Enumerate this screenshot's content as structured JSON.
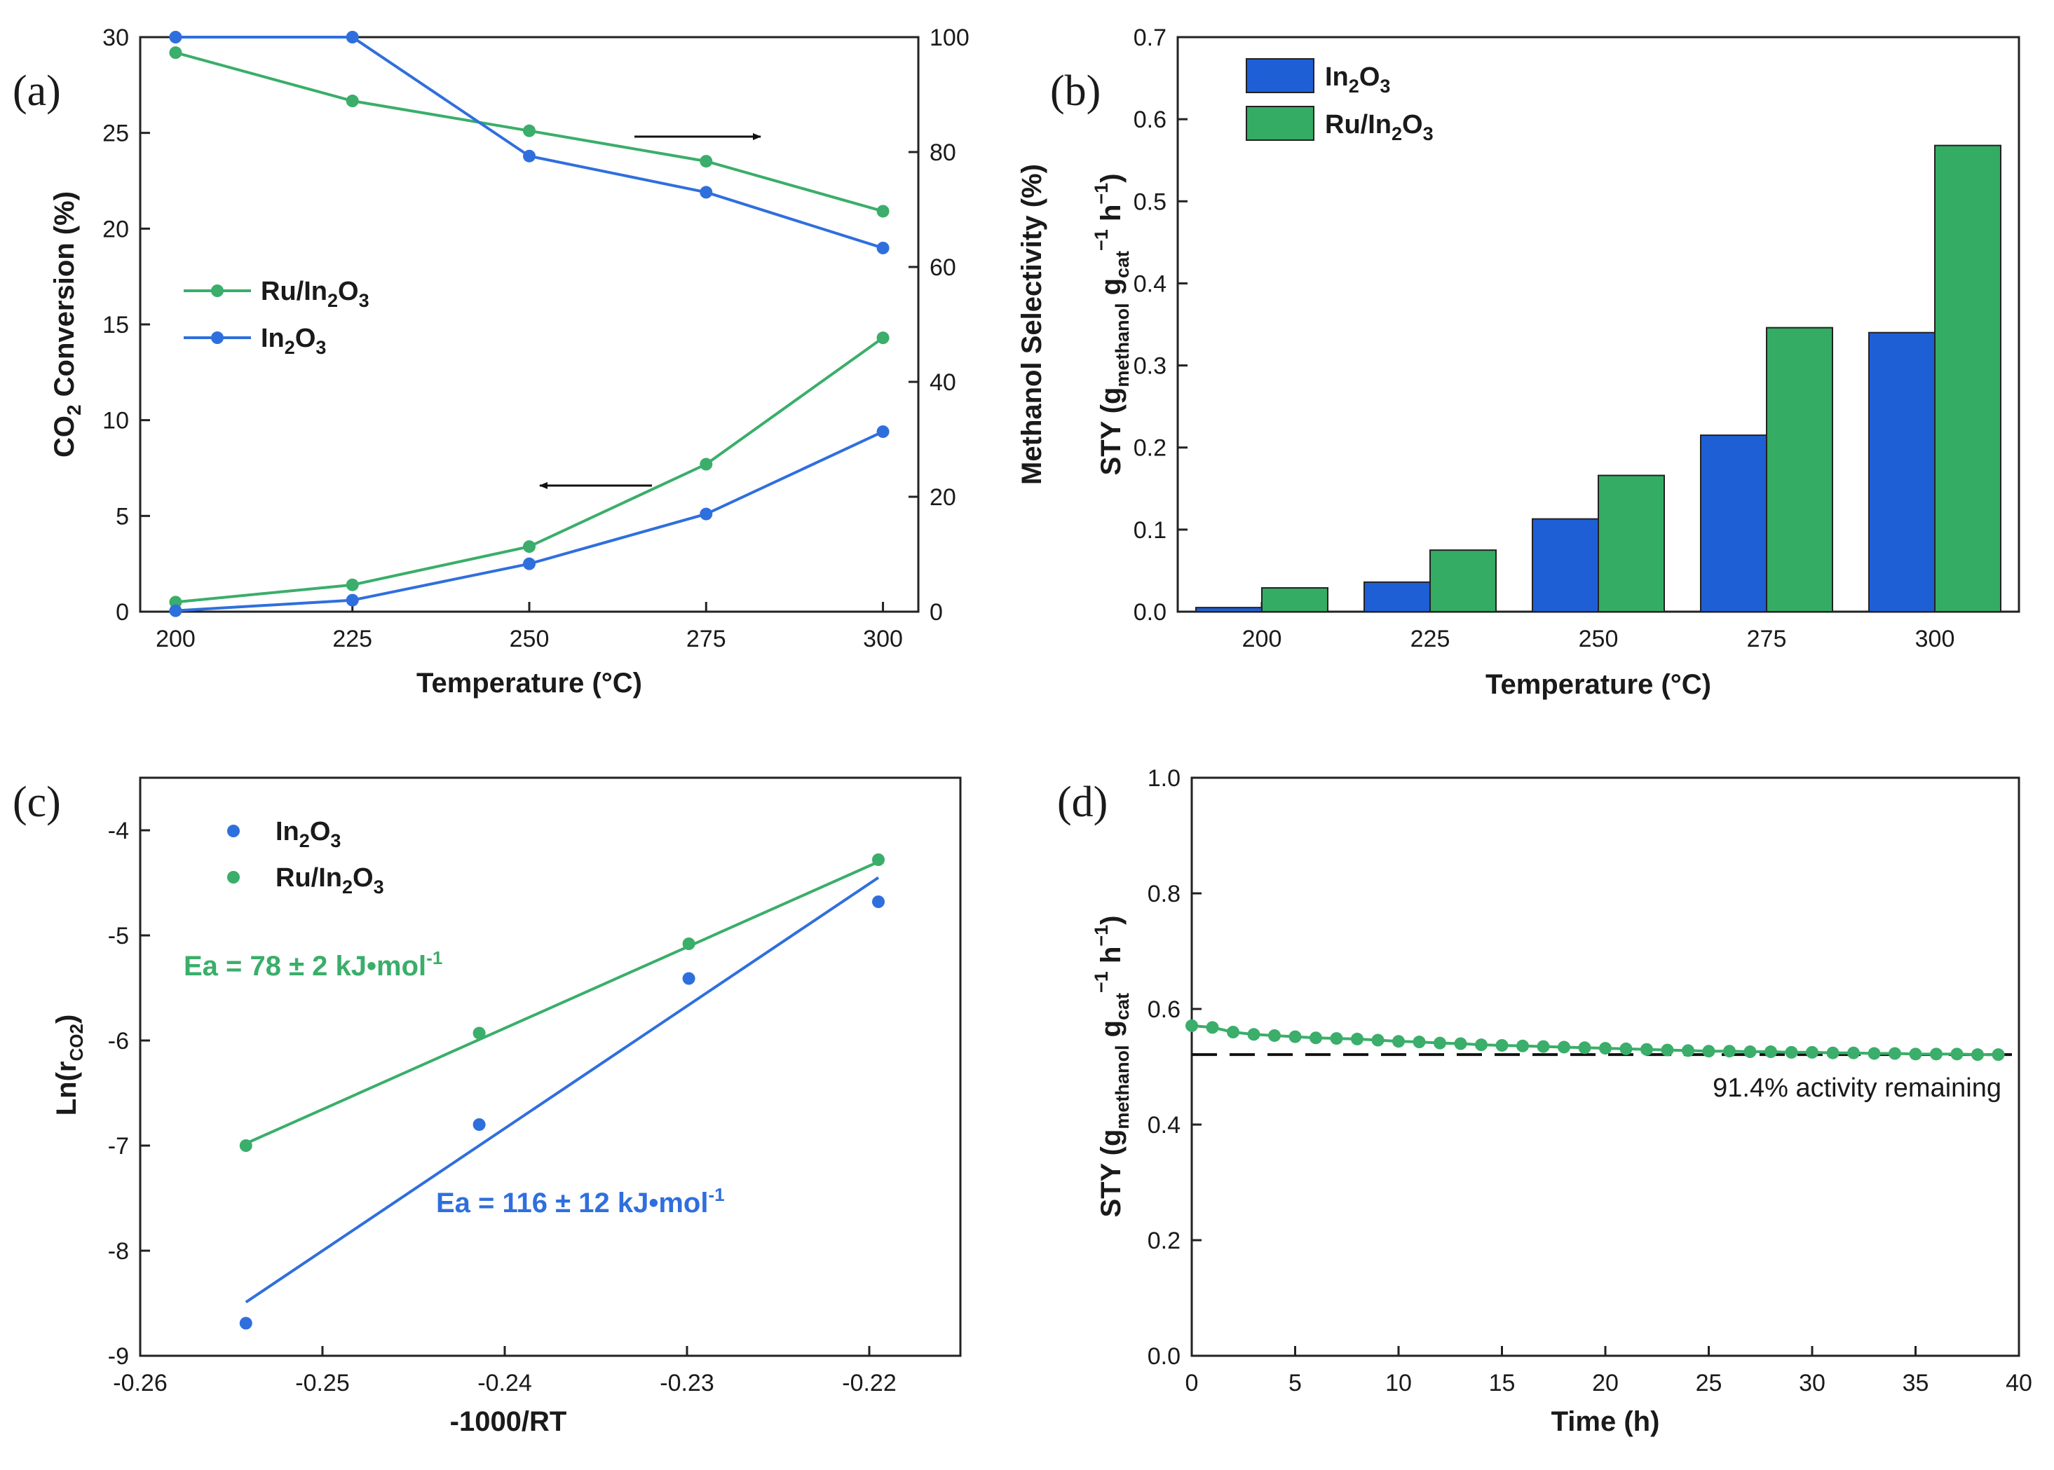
{
  "colors": {
    "in2o3": "#2f6fdd",
    "ru_in2o3": "#3aae6a",
    "in2o3_fill": "#1f5fd6",
    "ru_fill": "#34ac64",
    "axis": "#222222"
  },
  "chart_data": [
    {
      "id": "a",
      "panel_label": "(a)",
      "type": "line",
      "xlabel": "Temperature (°C)",
      "ylabel_left": "CO2 Conversion (%)",
      "ylabel_right": "Methanol Selectivity (%)",
      "xlim": [
        195,
        305
      ],
      "ylim_left": [
        0,
        30
      ],
      "ylim_right": [
        0,
        100
      ],
      "xticks": [
        200,
        225,
        250,
        275,
        300
      ],
      "yticks_left": [
        0,
        5,
        10,
        15,
        20,
        25,
        30
      ],
      "yticks_right": [
        0,
        20,
        40,
        60,
        80,
        100
      ],
      "x": [
        200,
        225,
        250,
        275,
        300
      ],
      "legend": [
        "Ru/In2O3",
        "In2O3"
      ],
      "series": [
        {
          "name": "Ru/In2O3 conversion",
          "axis": "left",
          "color": "ru_in2o3",
          "values": [
            0.5,
            1.4,
            3.4,
            7.7,
            14.3
          ]
        },
        {
          "name": "In2O3 conversion",
          "axis": "left",
          "color": "in2o3",
          "values": [
            0.05,
            0.6,
            2.5,
            5.1,
            9.4
          ]
        },
        {
          "name": "Ru/In2O3 selectivity",
          "axis": "right",
          "color": "ru_in2o3",
          "values": [
            97.3,
            88.9,
            83.7,
            78.4,
            69.7
          ]
        },
        {
          "name": "In2O3 selectivity",
          "axis": "right",
          "color": "in2o3",
          "values": [
            100,
            100,
            79.3,
            73.0,
            63.3
          ]
        }
      ]
    },
    {
      "id": "b",
      "panel_label": "(b)",
      "type": "bar",
      "xlabel": "Temperature (°C)",
      "ylabel": "STY (g_methanol g_cat^-1 h^-1)",
      "ylim": [
        0,
        0.7
      ],
      "yticks": [
        0.0,
        0.1,
        0.2,
        0.3,
        0.4,
        0.5,
        0.6,
        0.7
      ],
      "categories": [
        "200",
        "225",
        "250",
        "275",
        "300"
      ],
      "series": [
        {
          "name": "In2O3",
          "color": "in2o3_fill",
          "values": [
            0.005,
            0.036,
            0.113,
            0.215,
            0.34
          ]
        },
        {
          "name": "Ru/In2O3",
          "color": "ru_fill",
          "values": [
            0.029,
            0.075,
            0.166,
            0.346,
            0.568
          ]
        }
      ]
    },
    {
      "id": "c",
      "panel_label": "(c)",
      "type": "scatter",
      "xlabel": "-1000/RT",
      "ylabel": "Ln(r_CO2)",
      "xlim": [
        -0.26,
        -0.215
      ],
      "ylim": [
        -9,
        -3.5
      ],
      "xticks": [
        -0.26,
        -0.25,
        -0.24,
        -0.23,
        -0.22
      ],
      "yticks": [
        -9,
        -8,
        -7,
        -6,
        -5,
        -4
      ],
      "series": [
        {
          "name": "In2O3",
          "color": "in2o3",
          "x": [
            -0.2542,
            -0.2414,
            -0.2299,
            -0.2195
          ],
          "y": [
            -8.69,
            -6.8,
            -5.41,
            -4.68
          ],
          "fit": {
            "x": [
              -0.2542,
              -0.2195
            ],
            "y": [
              -8.49,
              -4.45
            ]
          },
          "annotation": "Ea = 116 ± 12 kJ•mol",
          "annotation_sup": "-1"
        },
        {
          "name": "Ru/In2O3",
          "color": "ru_in2o3",
          "x": [
            -0.2542,
            -0.2414,
            -0.2299,
            -0.2195
          ],
          "y": [
            -7.0,
            -5.93,
            -5.08,
            -4.28
          ],
          "fit": {
            "x": [
              -0.2542,
              -0.2195
            ],
            "y": [
              -6.98,
              -4.3
            ]
          },
          "annotation": "Ea = 78 ± 2 kJ•mol",
          "annotation_sup": "-1"
        }
      ]
    },
    {
      "id": "d",
      "panel_label": "(d)",
      "type": "line",
      "xlabel": "Time (h)",
      "ylabel": "STY (g_methanol g_cat^-1 h^-1)",
      "xlim": [
        0,
        40
      ],
      "ylim": [
        0,
        1.0
      ],
      "xticks": [
        0,
        5,
        10,
        15,
        20,
        25,
        30,
        35,
        40
      ],
      "yticks": [
        0.0,
        0.2,
        0.4,
        0.6,
        0.8,
        1.0
      ],
      "series": [
        {
          "name": "Ru/In2O3",
          "color": "ru_in2o3",
          "x": [
            0,
            1,
            2,
            3,
            4,
            5,
            6,
            7,
            8,
            9,
            10,
            11,
            12,
            13,
            14,
            15,
            16,
            17,
            18,
            19,
            20,
            21,
            22,
            23,
            24,
            25,
            26,
            27,
            28,
            29,
            30,
            31,
            32,
            33,
            34,
            35,
            36,
            37,
            38,
            39
          ],
          "y": [
            0.571,
            0.568,
            0.56,
            0.556,
            0.554,
            0.552,
            0.55,
            0.549,
            0.548,
            0.546,
            0.544,
            0.543,
            0.541,
            0.54,
            0.538,
            0.537,
            0.536,
            0.535,
            0.534,
            0.533,
            0.532,
            0.531,
            0.53,
            0.529,
            0.528,
            0.527,
            0.527,
            0.526,
            0.526,
            0.525,
            0.525,
            0.524,
            0.524,
            0.523,
            0.523,
            0.522,
            0.522,
            0.522,
            0.521,
            0.521
          ]
        }
      ],
      "reference_line": 0.521,
      "annotation": "91.4% activity remaining"
    }
  ]
}
